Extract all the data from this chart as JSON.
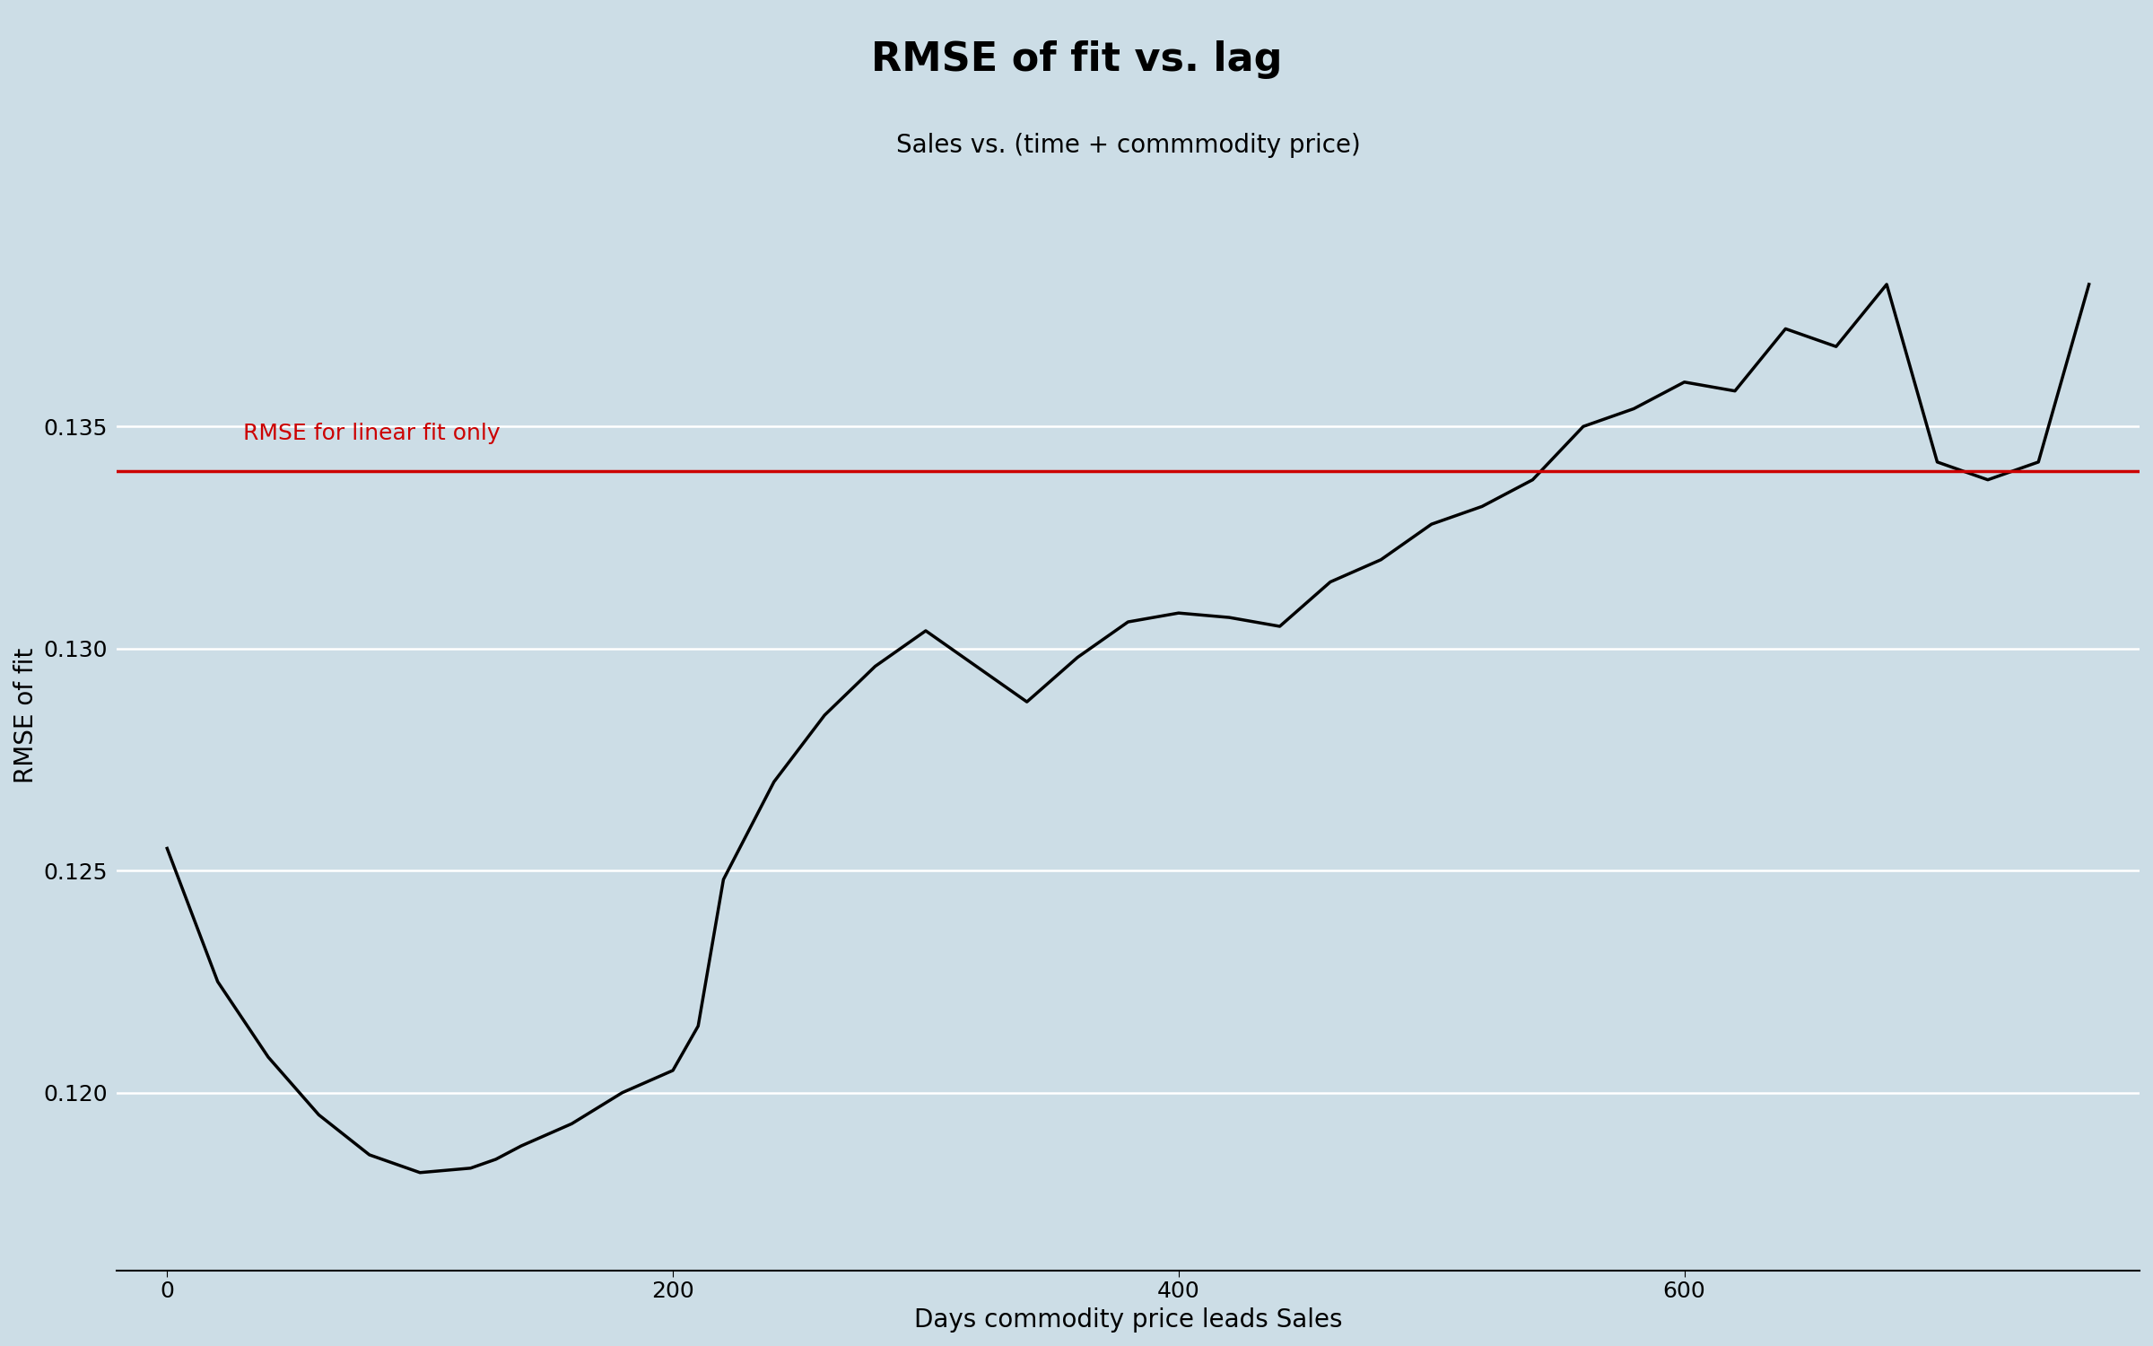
{
  "title": "RMSE of fit vs. lag",
  "subtitle": "Sales vs. (time + commmodity price)",
  "xlabel": "Days commodity price leads Sales",
  "ylabel": "RMSE of fit",
  "background_color": "#ccdde6",
  "line_color": "#000000",
  "hline_color": "#cc0000",
  "hline_value": 0.134,
  "hline_label": "RMSE for linear fit only",
  "x": [
    0,
    20,
    40,
    60,
    80,
    100,
    120,
    130,
    140,
    160,
    180,
    200,
    210,
    220,
    240,
    260,
    280,
    300,
    320,
    340,
    360,
    380,
    400,
    420,
    440,
    460,
    480,
    500,
    520,
    540,
    560,
    580,
    600,
    620,
    640,
    660,
    680,
    700,
    720,
    740,
    760
  ],
  "y": [
    0.1255,
    0.1225,
    0.1208,
    0.1195,
    0.1186,
    0.1182,
    0.1183,
    0.1185,
    0.1188,
    0.1193,
    0.12,
    0.1205,
    0.1215,
    0.1248,
    0.127,
    0.1285,
    0.1296,
    0.1304,
    0.1296,
    0.1288,
    0.1298,
    0.1306,
    0.1308,
    0.1307,
    0.1305,
    0.1315,
    0.132,
    0.1328,
    0.1332,
    0.1338,
    0.135,
    0.1354,
    0.136,
    0.1358,
    0.1372,
    0.1368,
    0.1382,
    0.1342,
    0.1338,
    0.1342,
    0.1382
  ],
  "xlim": [
    -20,
    780
  ],
  "ylim": [
    0.116,
    0.141
  ],
  "yticks": [
    0.12,
    0.125,
    0.13,
    0.135
  ],
  "xticks": [
    0,
    200,
    400,
    600
  ],
  "title_fontsize": 32,
  "subtitle_fontsize": 20,
  "label_fontsize": 20,
  "tick_fontsize": 18,
  "hline_label_fontsize": 18,
  "grid_linewidth": 1.8,
  "line_linewidth": 2.5
}
